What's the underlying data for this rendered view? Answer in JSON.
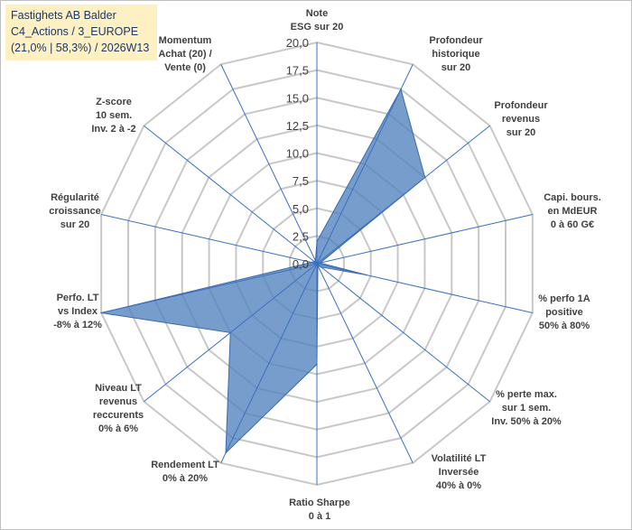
{
  "header": {
    "line1": "Fastighets AB Balder",
    "line2": "C4_Actions / 3_EUROPE",
    "line3": "(21,0% | 58,3%) / 2026W13"
  },
  "chart_data": {
    "type": "radar",
    "title": "",
    "rmin": 0,
    "rmax": 20,
    "tick_step": 2.5,
    "tick_labels": [
      "0,0",
      "2,5",
      "5,0",
      "7,5",
      "10,0",
      "12,5",
      "15,0",
      "17,5",
      "20,0"
    ],
    "grid": true,
    "axes": [
      {
        "label": [
          "Note",
          "ESG sur 20"
        ]
      },
      {
        "label": [
          "Profondeur",
          "historique",
          "sur 20"
        ]
      },
      {
        "label": [
          "Profondeur",
          "revenus",
          "sur 20"
        ]
      },
      {
        "label": [
          "Capi. bours.",
          "en MdEUR",
          "0 à 60 G€"
        ]
      },
      {
        "label": [
          "% perfo 1A",
          "positive",
          "50% à 80%"
        ]
      },
      {
        "label": [
          "% perte max.",
          "sur 1 sem.",
          "Inv. 50% à 20%"
        ]
      },
      {
        "label": [
          "Volatilité LT",
          "Inversée",
          "40% à 0%"
        ]
      },
      {
        "label": [
          "Ratio Sharpe",
          "0 à 1"
        ]
      },
      {
        "label": [
          "Rendement LT",
          "0% à 20%"
        ]
      },
      {
        "label": [
          "Niveau LT",
          "revenus",
          "reccurents",
          "0% à 6%"
        ]
      },
      {
        "label": [
          "Perfo. LT",
          "vs Index",
          "-8% à 12%"
        ]
      },
      {
        "label": [
          "Régularité",
          "croissance",
          "sur 20"
        ]
      },
      {
        "label": [
          "Z-score",
          "10 sem.",
          "Inv. 2 à -2"
        ]
      },
      {
        "label": [
          "Momentum",
          "Achat (20) /",
          "Vente (0)"
        ]
      }
    ],
    "series": [
      {
        "values": [
          2.0,
          17.5,
          12.5,
          0.3,
          4.6,
          0.5,
          0.2,
          9.1,
          19.0,
          10.0,
          20.0,
          0.5,
          0.3,
          0.3
        ],
        "color": "#4f81bd"
      }
    ]
  }
}
